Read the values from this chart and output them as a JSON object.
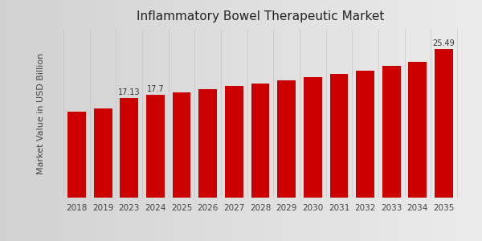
{
  "title": "Inflammatory Bowel Therapeutic Market",
  "ylabel": "Market Value in USD Billion",
  "categories": [
    "2018",
    "2019",
    "2023",
    "2024",
    "2025",
    "2026",
    "2027",
    "2028",
    "2029",
    "2030",
    "2031",
    "2032",
    "2033",
    "2034",
    "2035"
  ],
  "values": [
    14.8,
    15.3,
    17.13,
    17.7,
    18.1,
    18.6,
    19.2,
    19.6,
    20.1,
    20.7,
    21.2,
    21.8,
    22.6,
    23.3,
    25.49
  ],
  "bar_color": "#cc0000",
  "labeled_bars": {
    "2023": "17.13",
    "2024": "17.7",
    "2035": "25.49"
  },
  "bg_color_left": "#d0d0d0",
  "bg_color_right": "#e8e8e8",
  "title_fontsize": 11,
  "ylabel_fontsize": 8,
  "tick_fontsize": 7.5,
  "label_fontsize": 7,
  "ylim": [
    0,
    29
  ],
  "figsize": [
    6.0,
    3.0
  ],
  "dpi": 100,
  "bottom_strip_color": "#cc0000",
  "separator_color": "#bbbbbb"
}
